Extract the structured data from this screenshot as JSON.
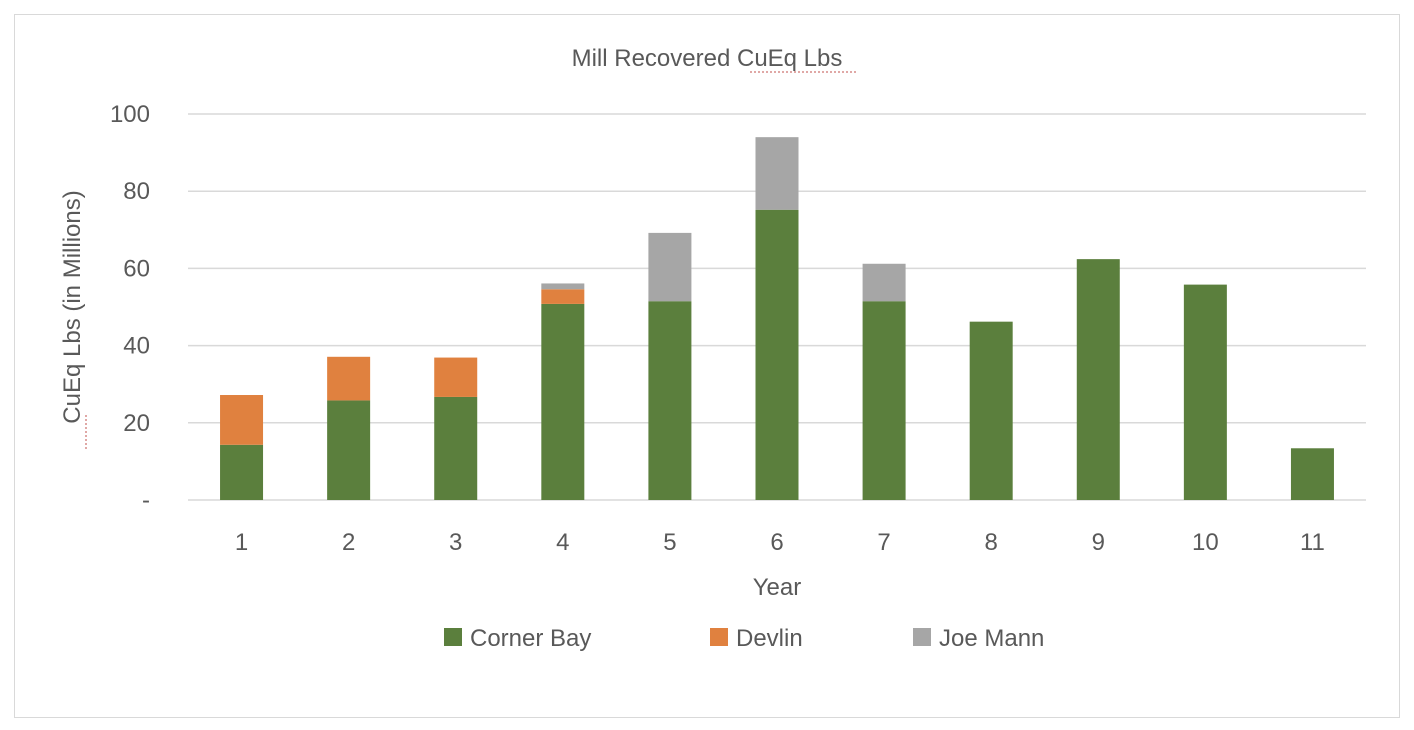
{
  "chart_data": {
    "type": "bar",
    "stacked": true,
    "title": "Mill Recovered CuEq Lbs",
    "xlabel": "Year",
    "ylabel": "CuEq Lbs (in Millions)",
    "ylim": [
      0,
      100
    ],
    "yticks": [
      {
        "value": 0,
        "label": "-"
      },
      {
        "value": 20,
        "label": "20"
      },
      {
        "value": 40,
        "label": "40"
      },
      {
        "value": 60,
        "label": "60"
      },
      {
        "value": 80,
        "label": "80"
      },
      {
        "value": 100,
        "label": "100"
      }
    ],
    "grid": true,
    "legend_position": "bottom",
    "categories": [
      "1",
      "2",
      "3",
      "4",
      "5",
      "6",
      "7",
      "8",
      "9",
      "10",
      "11"
    ],
    "series": [
      {
        "name": "Corner Bay",
        "color": "#5b7f3d",
        "values": [
          14.3,
          25.8,
          26.7,
          50.8,
          51.5,
          75.2,
          51.5,
          46.2,
          62.4,
          55.8,
          13.4
        ]
      },
      {
        "name": "Devlin",
        "color": "#e0813f",
        "values": [
          12.9,
          11.3,
          10.2,
          3.8,
          0,
          0,
          0,
          0,
          0,
          0,
          0
        ]
      },
      {
        "name": "Joe Mann",
        "color": "#a6a6a6",
        "values": [
          0,
          0,
          0,
          1.5,
          17.7,
          18.8,
          9.7,
          0,
          0,
          0,
          0
        ]
      }
    ]
  }
}
